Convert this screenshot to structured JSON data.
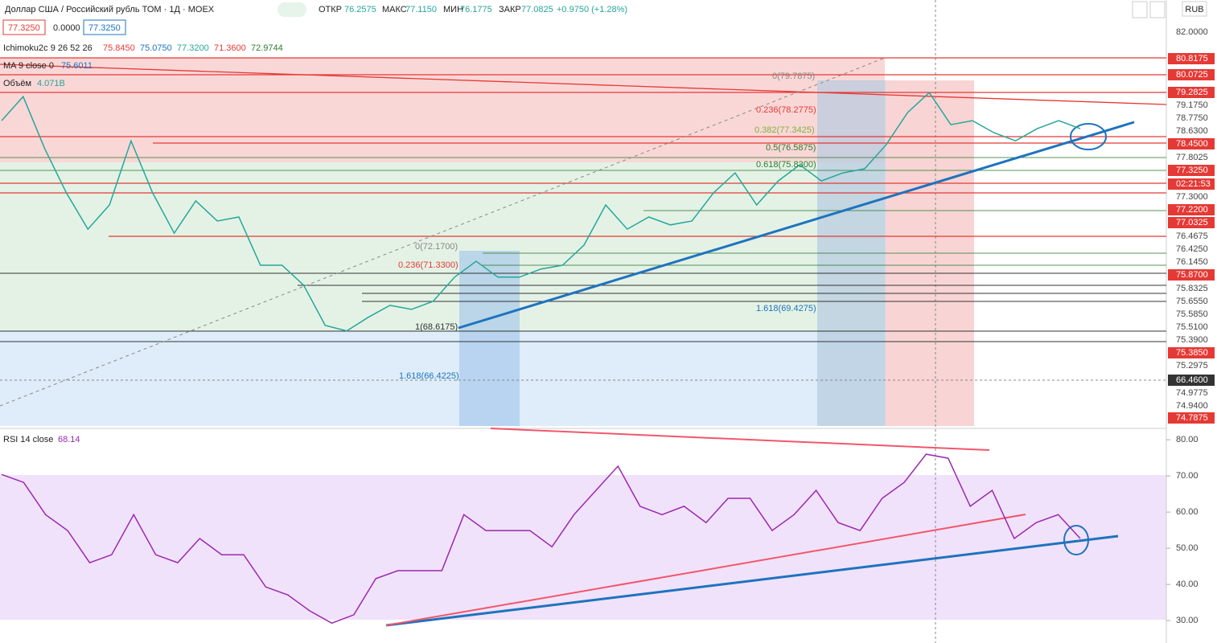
{
  "header": {
    "symbol": "Доллар США / Российский рубль ТОМ · 1Д · MOEX",
    "open_label": "ОТКР",
    "open": "76.2575",
    "high_label": "МАКС",
    "high": "77.1150",
    "low_label": "МИН",
    "low": "76.1775",
    "close_label": "ЗАКР",
    "close": "77.0825",
    "change": "+0.9750 (+1.28%)",
    "currency": "RUB"
  },
  "price_boxes": [
    "77.3250",
    "0.0000",
    "77.3250"
  ],
  "indicators": {
    "ichimoku": {
      "name": "Ichimoku2c 9 26 52 26",
      "values": [
        "75.8450",
        "75.0750",
        "77.3200",
        "71.3600",
        "72.9744"
      ]
    },
    "ma": {
      "name": "MA 9 close 0",
      "value": "75.6011"
    },
    "volume": {
      "name": "Объём",
      "value": "4.071B"
    },
    "rsi": {
      "name": "RSI 14 close",
      "value": "68.14"
    }
  },
  "price_axis_labels": [
    "82.0000",
    "80.8175",
    "80.0725",
    "79.2825",
    "79.1750",
    "78.7750",
    "78.6300",
    "78.4500",
    "77.8025",
    "77.3250",
    "02:21:53",
    "77.3000",
    "77.2200",
    "77.0325",
    "76.4675",
    "76.4250",
    "76.1450",
    "75.8700",
    "75.8325",
    "75.6550",
    "75.5850",
    "75.5100",
    "75.3900",
    "75.3850",
    "75.2975",
    "66.4600",
    "74.9775",
    "74.9400",
    "74.7875"
  ],
  "fib_labels": [
    "0(79.7875)",
    "0.236(78.2775)",
    "0.382(77.3425)",
    "0.5(76.5875)",
    "0.618(75.8300)",
    "1.618(69.4275)",
    "0(72.1700)",
    "0.236(71.3300)",
    "1(68.6175)",
    "1.618(66.4225)"
  ],
  "price_chart": {
    "type": "line",
    "ylim": [
      64.2,
      83.2
    ],
    "values": [
      77.82,
      78.89,
      76.57,
      74.6,
      72.98,
      74.06,
      76.92,
      74.6,
      72.8,
      74.24,
      73.34,
      73.52,
      71.37,
      71.37,
      70.48,
      68.69,
      68.44,
      69.05,
      69.58,
      69.4,
      69.76,
      70.84,
      71.55,
      70.84,
      70.84,
      71.2,
      71.37,
      72.27,
      74.06,
      72.98,
      73.52,
      73.17,
      73.34,
      74.6,
      75.49,
      74.06,
      75.13,
      75.85,
      75.13,
      75.49,
      75.67,
      76.74,
      78.18,
      79.07,
      77.64,
      77.82,
      77.28,
      76.92,
      77.46,
      77.82,
      77.46
    ],
    "color": "#26a69a"
  },
  "rsi_chart": {
    "type": "line",
    "ylim": [
      23.8,
      82.7
    ],
    "yticks": [
      {
        "value": 80,
        "label": "80.00"
      },
      {
        "value": 70,
        "label": "70.00"
      },
      {
        "value": 60,
        "label": "60.00"
      },
      {
        "value": 50,
        "label": "50.00"
      },
      {
        "value": 40,
        "label": "40.00"
      },
      {
        "value": 30,
        "label": "30.00"
      }
    ],
    "values": [
      70.4,
      68.2,
      59.3,
      54.9,
      46,
      48.2,
      59.3,
      48.2,
      46,
      52.7,
      48.2,
      48.2,
      39.3,
      37.1,
      32.7,
      29.3,
      31.6,
      41.6,
      43.8,
      43.8,
      43.8,
      59.3,
      54.9,
      54.9,
      54.9,
      50.4,
      59.3,
      66,
      72.7,
      61.6,
      59.3,
      61.6,
      57.1,
      63.8,
      63.8,
      54.9,
      59.3,
      66,
      57.1,
      54.9,
      63.8,
      68.2,
      76,
      74.9,
      61.6,
      66,
      52.7,
      57.1,
      59.3,
      52.7
    ],
    "color": "#9c27b0"
  }
}
